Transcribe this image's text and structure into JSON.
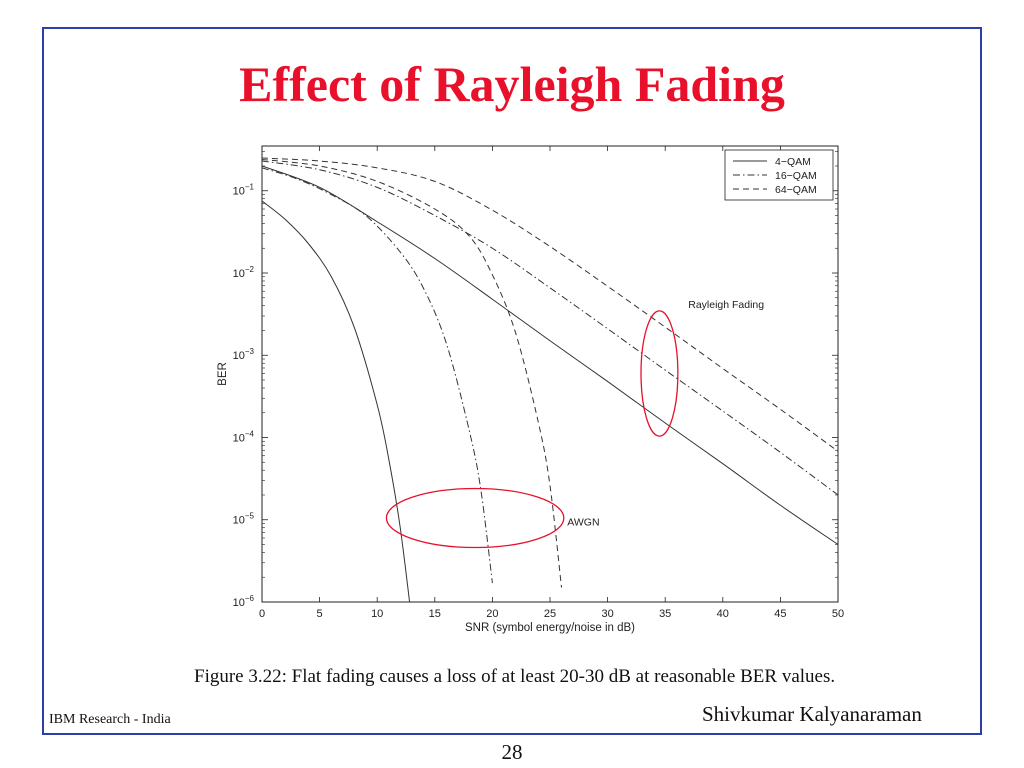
{
  "slide": {
    "title": "Effect of Rayleigh Fading",
    "caption": "Figure 3.22: Flat fading causes a loss of at least 20-30 dB at reasonable BER values.",
    "footer_left": "IBM Research - India",
    "footer_right": "Shivkumar Kalyanaraman",
    "page_number": "28"
  },
  "colors": {
    "title": "#e8102a",
    "frame": "#2b3fa8",
    "annotation": "#e8102a",
    "lines": "#333333"
  },
  "chart_data": {
    "type": "line",
    "xlabel": "SNR (symbol energy/noise in dB)",
    "ylabel": "BER",
    "xlim": [
      0,
      50
    ],
    "ylim": [
      1e-06,
      0.35
    ],
    "yscale": "log",
    "xticks": [
      0,
      5,
      10,
      15,
      20,
      25,
      30,
      35,
      40,
      45,
      50
    ],
    "xtick_labels": [
      "0",
      "5",
      "10",
      "15",
      "20",
      "25",
      "30",
      "35",
      "40",
      "45",
      "50"
    ],
    "yticks": [
      1e-06,
      1e-05,
      0.0001,
      0.001,
      0.01,
      0.1
    ],
    "ytick_labels": [
      {
        "base": "10",
        "exp": "−6"
      },
      {
        "base": "10",
        "exp": "−5"
      },
      {
        "base": "10",
        "exp": "−4"
      },
      {
        "base": "10",
        "exp": "−3"
      },
      {
        "base": "10",
        "exp": "−2"
      },
      {
        "base": "10",
        "exp": "−1"
      }
    ],
    "grid": false,
    "legend_position": "top-right",
    "legend": [
      {
        "label": "4−QAM",
        "style": "solid"
      },
      {
        "label": "16−QAM",
        "style": "dashdot"
      },
      {
        "label": "64−QAM",
        "style": "dashed"
      }
    ],
    "series": [
      {
        "group": "AWGN",
        "style": "solid",
        "modulation": "4-QAM",
        "x": [
          0,
          2,
          4,
          6,
          8,
          10,
          11,
          12,
          13
        ],
        "y": [
          0.075,
          0.045,
          0.023,
          0.0091,
          0.0022,
          0.00025,
          5.5e-05,
          8e-06,
          6e-07
        ]
      },
      {
        "group": "AWGN",
        "style": "dashdot",
        "modulation": "16-QAM",
        "x": [
          0,
          3,
          6,
          9,
          12,
          14,
          16,
          18,
          19,
          20
        ],
        "y": [
          0.19,
          0.14,
          0.09,
          0.05,
          0.018,
          0.0066,
          0.0014,
          0.00012,
          2.3e-05,
          1.7e-06
        ]
      },
      {
        "group": "AWGN",
        "style": "dashed",
        "modulation": "64-QAM",
        "x": [
          0,
          5,
          10,
          15,
          18,
          20,
          22,
          24,
          25,
          26
        ],
        "y": [
          0.24,
          0.2,
          0.13,
          0.06,
          0.028,
          0.0095,
          0.0019,
          0.00015,
          2.6e-05,
          1.5e-06
        ]
      },
      {
        "group": "Rayleigh Fading",
        "style": "solid",
        "modulation": "4-QAM",
        "x": [
          0,
          5,
          10,
          15,
          20,
          25,
          30,
          35,
          40,
          45,
          50
        ],
        "y": [
          0.2,
          0.11,
          0.042,
          0.015,
          0.0048,
          0.0015,
          0.00048,
          0.00015,
          4.8e-05,
          1.5e-05,
          5e-06
        ]
      },
      {
        "group": "Rayleigh Fading",
        "style": "dashdot",
        "modulation": "16-QAM",
        "x": [
          0,
          5,
          10,
          15,
          20,
          25,
          30,
          35,
          40,
          45,
          50
        ],
        "y": [
          0.23,
          0.18,
          0.11,
          0.05,
          0.02,
          0.0066,
          0.0021,
          0.00066,
          0.00021,
          6.6e-05,
          2e-05
        ]
      },
      {
        "group": "Rayleigh Fading",
        "style": "dashed",
        "modulation": "64-QAM",
        "x": [
          0,
          5,
          10,
          15,
          20,
          25,
          30,
          35,
          40,
          45,
          50
        ],
        "y": [
          0.25,
          0.23,
          0.19,
          0.13,
          0.058,
          0.021,
          0.0069,
          0.0022,
          0.00069,
          0.00022,
          6.8e-05
        ]
      }
    ],
    "annotations": [
      {
        "text": "Rayleigh Fading",
        "x": 37,
        "y": 0.0042
      },
      {
        "text": "AWGN",
        "x": 26.5,
        "y": 9.5e-06
      }
    ],
    "highlight_ellipses": [
      {
        "label": "Rayleigh Fading",
        "cx": 34.5,
        "cy": 0.0006,
        "rx": 1.6,
        "y_top": 0.0035,
        "y_bottom": 0.000105
      },
      {
        "label": "AWGN",
        "cx": 18.5,
        "cy": 1.05e-05,
        "rx": 7.7,
        "y_top": 2.4e-05,
        "y_bottom": 4.6e-06
      }
    ]
  }
}
